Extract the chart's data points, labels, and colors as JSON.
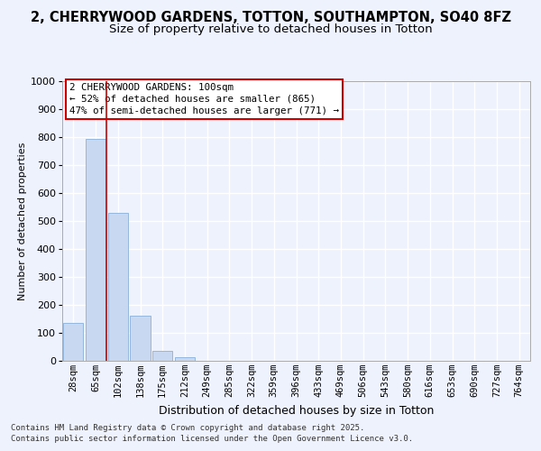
{
  "title_line1": "2, CHERRYWOOD GARDENS, TOTTON, SOUTHAMPTON, SO40 8FZ",
  "title_line2": "Size of property relative to detached houses in Totton",
  "xlabel": "Distribution of detached houses by size in Totton",
  "ylabel": "Number of detached properties",
  "categories": [
    "28sqm",
    "65sqm",
    "102sqm",
    "138sqm",
    "175sqm",
    "212sqm",
    "249sqm",
    "285sqm",
    "322sqm",
    "359sqm",
    "396sqm",
    "433sqm",
    "469sqm",
    "506sqm",
    "543sqm",
    "580sqm",
    "616sqm",
    "653sqm",
    "690sqm",
    "727sqm",
    "764sqm"
  ],
  "values": [
    135,
    795,
    530,
    160,
    37,
    12,
    0,
    0,
    0,
    0,
    0,
    0,
    0,
    0,
    0,
    0,
    0,
    0,
    0,
    0,
    0
  ],
  "bar_color": "#c8d8f0",
  "bar_edge_color": "#8ab0d8",
  "redline_x": 1.5,
  "ylim": [
    0,
    1000
  ],
  "yticks": [
    0,
    100,
    200,
    300,
    400,
    500,
    600,
    700,
    800,
    900,
    1000
  ],
  "annotation_title": "2 CHERRYWOOD GARDENS: 100sqm",
  "annotation_line1": "← 52% of detached houses are smaller (865)",
  "annotation_line2": "47% of semi-detached houses are larger (771) →",
  "annotation_box_color": "#ffffff",
  "annotation_box_edgecolor": "#cc0000",
  "redline_color": "#cc0000",
  "footer_line1": "Contains HM Land Registry data © Crown copyright and database right 2025.",
  "footer_line2": "Contains public sector information licensed under the Open Government Licence v3.0.",
  "background_color": "#eef2fc",
  "grid_color": "#ffffff",
  "title_fontsize": 10.5,
  "subtitle_fontsize": 9.5,
  "ylabel_fontsize": 8,
  "xlabel_fontsize": 9,
  "tick_fontsize": 7.5,
  "ytick_fontsize": 8,
  "annotation_fontsize": 7.8,
  "footer_fontsize": 6.5
}
